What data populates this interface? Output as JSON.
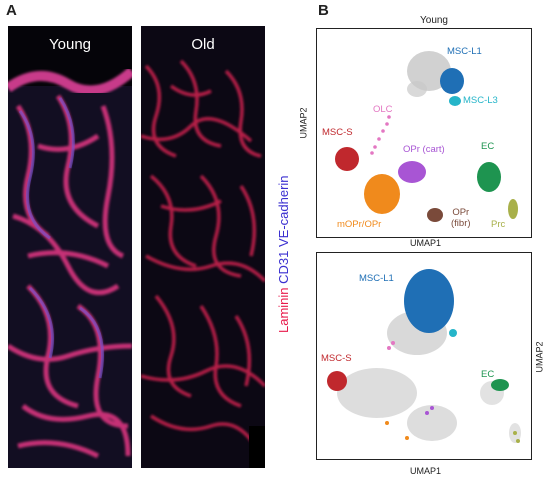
{
  "panels": {
    "a": "A",
    "b": "B"
  },
  "micrographs": {
    "young_label": "Young",
    "old_label": "Old"
  },
  "stain": {
    "red": "Laminin",
    "blue": "CD31 VE-cadherin"
  },
  "umap_top": {
    "title": "Young",
    "xlabel": "UMAP1",
    "ylabel": "UMAP2",
    "clusters": [
      {
        "label": "MSC-L1",
        "color": "#1f6fb5"
      },
      {
        "label": "MSC-L3",
        "color": "#25b5c9"
      },
      {
        "label": "OLC",
        "color": "#e377c2"
      },
      {
        "label": "MSC-S",
        "color": "#c0282d"
      },
      {
        "label": "OPr (cart)",
        "color": "#a855d4"
      },
      {
        "label": "EC",
        "color": "#1e9450"
      },
      {
        "label": "OPr\n(fibr)",
        "color": "#7a4a3a"
      },
      {
        "label": "mOPr/OPr",
        "color": "#f08a1c"
      },
      {
        "label": "Prc",
        "color": "#a8b04a"
      }
    ]
  },
  "umap_bottom": {
    "xlabel": "UMAP1",
    "ylabel": "UMAP2",
    "clusters": [
      {
        "label": "MSC-L1",
        "color": "#1f6fb5"
      },
      {
        "label": "MSC-S",
        "color": "#c0282d"
      },
      {
        "label": "EC",
        "color": "#1e9450"
      }
    ]
  }
}
